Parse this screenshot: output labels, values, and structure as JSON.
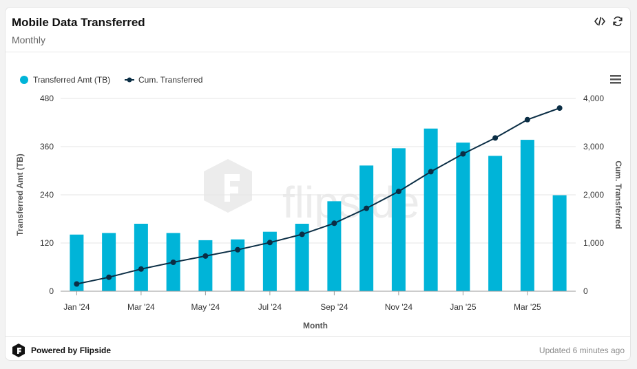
{
  "header": {
    "title": "Mobile Data Transferred",
    "subtitle": "Monthly"
  },
  "icons": {
    "embed": "code-icon",
    "refresh": "refresh-icon",
    "menu": "hamburger-menu-icon",
    "brand": "flipside-logo-icon"
  },
  "watermark": {
    "text": "flipside"
  },
  "footer": {
    "brand": "Powered by Flipside",
    "updated": "Updated 6 minutes ago"
  },
  "colors": {
    "bar": "#00b4d8",
    "line": "#0b2e45",
    "grid": "#e6e6e6"
  },
  "chart_data": {
    "type": "bar",
    "xlabel": "Month",
    "ylabel_left": "Transferred Amt (TB)",
    "ylabel_right": "Cum. Transferred",
    "left_ticks": [
      "0",
      "120",
      "240",
      "360",
      "480"
    ],
    "right_ticks": [
      "0",
      "1,000",
      "2,000",
      "3,000",
      "4,000"
    ],
    "ylim_left": [
      0,
      480
    ],
    "ylim_right": [
      0,
      4000
    ],
    "x_tick_labels": [
      "Jan '24",
      "Mar '24",
      "May '24",
      "Jul '24",
      "Sep '24",
      "Nov '24",
      "Jan '25",
      "Mar '25"
    ],
    "categories": [
      "Jan '24",
      "Feb '24",
      "Mar '24",
      "Apr '24",
      "May '24",
      "Jun '24",
      "Jul '24",
      "Aug '24",
      "Sep '24",
      "Oct '24",
      "Nov '24",
      "Dec '24",
      "Jan '25",
      "Feb '25",
      "Mar '25",
      "Apr '25"
    ],
    "legend_position": "top-left",
    "grid": true,
    "series": [
      {
        "name": "Transferred Amt (TB)",
        "type": "bar",
        "axis": "left",
        "values": [
          141,
          145,
          168,
          145,
          127,
          129,
          148,
          168,
          224,
          313,
          356,
          405,
          370,
          337,
          377,
          239
        ]
      },
      {
        "name": "Cum. Transferred",
        "type": "line",
        "axis": "right",
        "values": [
          150,
          290,
          460,
          600,
          730,
          860,
          1010,
          1180,
          1410,
          1720,
          2070,
          2480,
          2850,
          3180,
          3560,
          3800
        ]
      }
    ]
  }
}
